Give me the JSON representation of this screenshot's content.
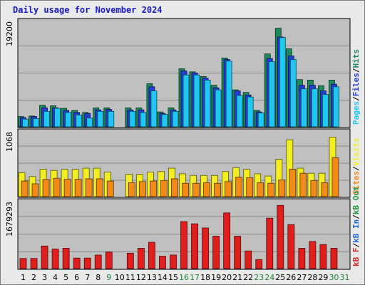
{
  "page": {
    "title": "Daily usage for November 2024"
  },
  "chart_data": [
    {
      "type": "bar",
      "name": "hits-files-pages",
      "categories": [
        "1",
        "2",
        "3",
        "4",
        "5",
        "6",
        "7",
        "8",
        "9",
        "10",
        "11",
        "12",
        "13",
        "14",
        "15",
        "16",
        "17",
        "18",
        "19",
        "20",
        "21",
        "22",
        "23",
        "24",
        "25",
        "26",
        "27",
        "28",
        "29",
        "30",
        "31"
      ],
      "weekend_days": [
        "9",
        "16",
        "17",
        "23",
        "24",
        "30",
        "31"
      ],
      "ymax_label": "19200",
      "ylim": [
        0,
        20400
      ],
      "legend": [
        "Pages",
        "/",
        "Files",
        "/",
        "Hits"
      ],
      "series": [
        {
          "name": "Hits",
          "color": "#1e8a5c",
          "values": [
            2000,
            2100,
            4200,
            4100,
            3600,
            3200,
            2800,
            3700,
            3700,
            0,
            3700,
            3700,
            8400,
            2900,
            3700,
            11300,
            10700,
            9800,
            8100,
            13400,
            7200,
            6700,
            3200,
            14200,
            19200,
            15200,
            9200,
            9100,
            8000,
            9100,
            0
          ]
        },
        {
          "name": "Files",
          "color": "#1f3fd6",
          "values": [
            1800,
            2000,
            3700,
            3700,
            3200,
            2800,
            2600,
            3300,
            3400,
            0,
            3300,
            3300,
            7800,
            2600,
            3300,
            10900,
            10500,
            9500,
            7600,
            13100,
            7000,
            6200,
            2900,
            13300,
            17500,
            13800,
            8100,
            8100,
            7000,
            8300,
            0
          ]
        },
        {
          "name": "Pages",
          "color": "#1ec8f2",
          "values": [
            1500,
            1600,
            3000,
            3600,
            2800,
            2300,
            1700,
            3000,
            3000,
            0,
            3000,
            2800,
            7000,
            2400,
            3000,
            10100,
            10100,
            9100,
            7200,
            12800,
            6100,
            5800,
            2700,
            12700,
            17400,
            13100,
            7400,
            7400,
            6300,
            7800,
            0
          ]
        }
      ]
    },
    {
      "type": "bar",
      "name": "visits-sites",
      "categories": [
        "1",
        "2",
        "3",
        "4",
        "5",
        "6",
        "7",
        "8",
        "9",
        "10",
        "11",
        "12",
        "13",
        "14",
        "15",
        "16",
        "17",
        "18",
        "19",
        "20",
        "21",
        "22",
        "23",
        "24",
        "25",
        "26",
        "27",
        "28",
        "29",
        "30",
        "31"
      ],
      "ymax_label": "1068",
      "ylim": [
        0,
        1150
      ],
      "legend": [
        "Sites",
        "/",
        "Visits"
      ],
      "series": [
        {
          "name": "Visits",
          "color": "#f2ee22",
          "values": [
            430,
            360,
            490,
            470,
            490,
            490,
            510,
            510,
            440,
            0,
            400,
            400,
            440,
            450,
            510,
            410,
            380,
            380,
            380,
            450,
            520,
            490,
            410,
            370,
            670,
            1020,
            510,
            420,
            420,
            1068,
            0
          ]
        },
        {
          "name": "Sites",
          "color": "#f28a18",
          "values": [
            280,
            230,
            310,
            330,
            310,
            310,
            320,
            320,
            280,
            0,
            250,
            270,
            280,
            290,
            320,
            240,
            240,
            250,
            240,
            270,
            350,
            340,
            250,
            240,
            300,
            490,
            420,
            290,
            250,
            700,
            0
          ]
        }
      ]
    },
    {
      "type": "bar",
      "name": "kbytes",
      "categories": [
        "1",
        "2",
        "3",
        "4",
        "5",
        "6",
        "7",
        "8",
        "9",
        "10",
        "11",
        "12",
        "13",
        "14",
        "15",
        "16",
        "17",
        "18",
        "19",
        "20",
        "21",
        "22",
        "23",
        "24",
        "25",
        "26",
        "27",
        "28",
        "29",
        "30",
        "31"
      ],
      "ymax_label": "1679293",
      "ylim": [
        0,
        1760000
      ],
      "legend": [
        "kB F",
        "/",
        "kB In",
        "/",
        "kB Out"
      ],
      "series": [
        {
          "name": "kB F",
          "color": "#e01e1e",
          "values": [
            270000,
            270000,
            600000,
            520000,
            540000,
            280000,
            280000,
            360000,
            440000,
            0,
            410000,
            540000,
            700000,
            330000,
            360000,
            1250000,
            1190000,
            1080000,
            860000,
            1480000,
            860000,
            470000,
            240000,
            1340000,
            1679293,
            1170000,
            540000,
            720000,
            640000,
            540000,
            0
          ]
        }
      ]
    }
  ]
}
